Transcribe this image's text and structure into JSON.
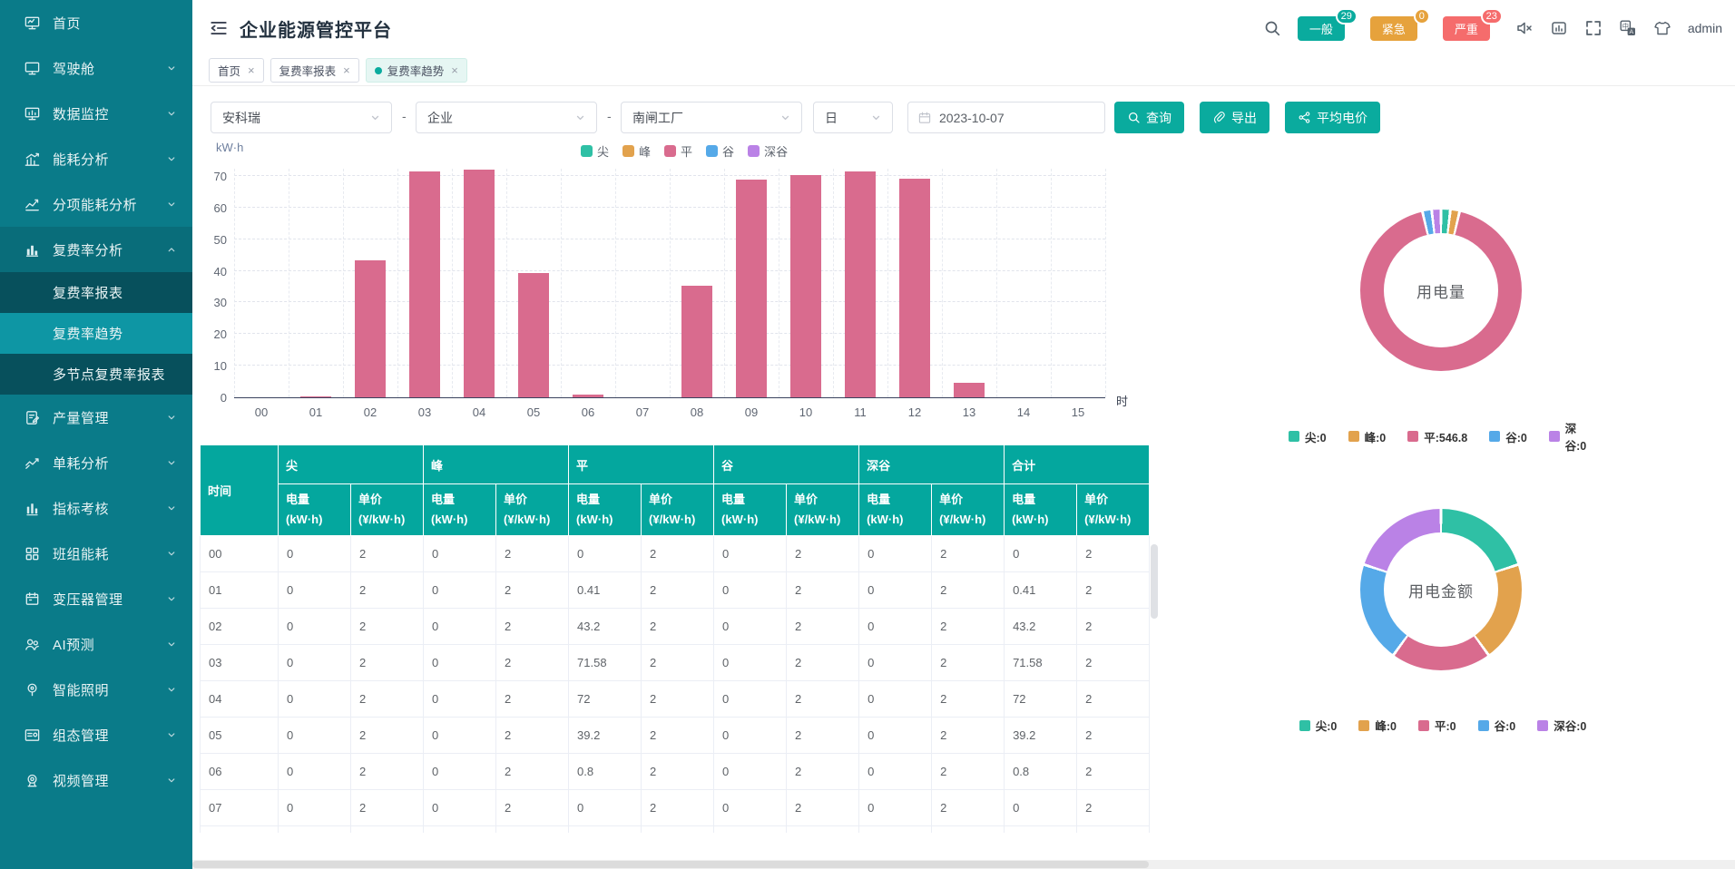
{
  "app": {
    "title": "企业能源管控平台",
    "user": "admin"
  },
  "header": {
    "icons": [
      "collapse-menu-icon",
      "search-icon",
      "volume-mute-icon",
      "monitor-chart-icon",
      "fullscreen-icon",
      "translate-icon",
      "theme-shirt-icon"
    ],
    "badges": [
      {
        "label": "一般",
        "count": "29",
        "color": "#0aab9e"
      },
      {
        "label": "紧急",
        "count": "0",
        "color": "#e6a23c"
      },
      {
        "label": "严重",
        "count": "23",
        "color": "#f56c6c"
      }
    ]
  },
  "tabs": [
    {
      "label": "首页",
      "active": false
    },
    {
      "label": "复费率报表",
      "active": false
    },
    {
      "label": "复费率趋势",
      "active": true
    }
  ],
  "sidebar": {
    "items": [
      {
        "label": "首页",
        "icon": "home-monitor-icon",
        "expandable": false
      },
      {
        "label": "驾驶舱",
        "icon": "dashboard-monitor-icon",
        "expandable": true
      },
      {
        "label": "数据监控",
        "icon": "data-monitor-icon",
        "expandable": true
      },
      {
        "label": "能耗分析",
        "icon": "energy-bars-icon",
        "expandable": true
      },
      {
        "label": "分项能耗分析",
        "icon": "line-chart-icon",
        "expandable": true
      },
      {
        "label": "复费率分析",
        "icon": "bar-chart-icon",
        "expandable": true,
        "expanded": true,
        "children": [
          {
            "label": "复费率报表",
            "active": false
          },
          {
            "label": "复费率趋势",
            "active": true
          },
          {
            "label": "多节点复费率报表",
            "active": false
          }
        ]
      },
      {
        "label": "产量管理",
        "icon": "notebook-icon",
        "expandable": true
      },
      {
        "label": "单耗分析",
        "icon": "trend-arrows-icon",
        "expandable": true
      },
      {
        "label": "指标考核",
        "icon": "bar-gauge-icon",
        "expandable": true
      },
      {
        "label": "班组能耗",
        "icon": "grid-icon",
        "expandable": true
      },
      {
        "label": "变压器管理",
        "icon": "calendar-icon",
        "expandable": true
      },
      {
        "label": "AI预测",
        "icon": "users-icon",
        "expandable": true
      },
      {
        "label": "智能照明",
        "icon": "bulb-icon",
        "expandable": true
      },
      {
        "label": "组态管理",
        "icon": "layout-icon",
        "expandable": true
      },
      {
        "label": "视频管理",
        "icon": "camera-icon",
        "expandable": true
      }
    ]
  },
  "filters": {
    "selects": [
      {
        "value": "安科瑞"
      },
      {
        "value": "企业"
      },
      {
        "value": "南闸工厂"
      },
      {
        "value": "日"
      }
    ],
    "separator": "-",
    "date": {
      "value": "2023-10-07"
    },
    "buttons": [
      {
        "label": "查询",
        "icon": "search-icon"
      },
      {
        "label": "导出",
        "icon": "paperclip-icon"
      },
      {
        "label": "平均电价",
        "icon": "share-icon"
      }
    ]
  },
  "chart_data": [
    {
      "type": "bar",
      "title": "复费率趋势按小时电量",
      "ylabel": "kW·h",
      "xlabel": "时",
      "ylim": [
        0,
        70
      ],
      "grid": "dashed",
      "legend_position": "top",
      "categories": [
        "00",
        "01",
        "02",
        "03",
        "04",
        "05",
        "06",
        "07",
        "08",
        "09",
        "10",
        "11",
        "12",
        "13",
        "14",
        "15"
      ],
      "series": [
        {
          "name": "尖",
          "color": "#2fc0a5",
          "values": [
            0,
            0,
            0,
            0,
            0,
            0,
            0,
            0,
            0,
            0,
            0,
            0,
            0,
            0,
            0,
            0
          ]
        },
        {
          "name": "峰",
          "color": "#e2a24d",
          "values": [
            0,
            0,
            0,
            0,
            0,
            0,
            0,
            0,
            0,
            0,
            0,
            0,
            0,
            0,
            0,
            0
          ]
        },
        {
          "name": "平",
          "color": "#d96b8e",
          "values": [
            0,
            0.41,
            43.2,
            71.58,
            72,
            39.2,
            0.8,
            0,
            35.3,
            68.8,
            70.3,
            71.4,
            69.2,
            4.5,
            0,
            0
          ]
        },
        {
          "name": "谷",
          "color": "#55a9e8",
          "values": [
            0,
            0,
            0,
            0,
            0,
            0,
            0,
            0,
            0,
            0,
            0,
            0,
            0,
            0,
            0,
            0
          ]
        },
        {
          "name": "深谷",
          "color": "#ba82e6",
          "values": [
            0,
            0,
            0,
            0,
            0,
            0,
            0,
            0,
            0,
            0,
            0,
            0,
            0,
            0,
            0,
            0
          ]
        }
      ]
    },
    {
      "type": "pie",
      "title": "用电量",
      "legend_position": "bottom",
      "slices": [
        {
          "label": "尖",
          "value": 0,
          "color": "#2fc0a5"
        },
        {
          "label": "峰",
          "value": 0,
          "color": "#e2a24d"
        },
        {
          "label": "平",
          "value": 546.8,
          "color": "#d96b8e"
        },
        {
          "label": "谷",
          "value": 0,
          "color": "#55a9e8"
        },
        {
          "label": "深谷",
          "value": 0,
          "color": "#ba82e6"
        }
      ]
    },
    {
      "type": "pie",
      "title": "用电金额",
      "legend_position": "bottom",
      "slices": [
        {
          "label": "尖",
          "value": 0,
          "color": "#2fc0a5"
        },
        {
          "label": "峰",
          "value": 0,
          "color": "#e2a24d"
        },
        {
          "label": "平",
          "value": 0,
          "color": "#d96b8e"
        },
        {
          "label": "谷",
          "value": 0,
          "color": "#55a9e8"
        },
        {
          "label": "深谷",
          "value": 0,
          "color": "#ba82e6"
        }
      ]
    }
  ],
  "table": {
    "time_header": "时间",
    "groups": [
      "尖",
      "峰",
      "平",
      "谷",
      "深谷",
      "合计"
    ],
    "sub_headers": [
      "电量(kW·h)",
      "单价(¥/kW·h)"
    ],
    "rows": [
      [
        "00",
        "0",
        "2",
        "0",
        "2",
        "0",
        "2",
        "0",
        "2",
        "0",
        "2",
        "0",
        "2"
      ],
      [
        "01",
        "0",
        "2",
        "0",
        "2",
        "0.41",
        "2",
        "0",
        "2",
        "0",
        "2",
        "0.41",
        "2"
      ],
      [
        "02",
        "0",
        "2",
        "0",
        "2",
        "43.2",
        "2",
        "0",
        "2",
        "0",
        "2",
        "43.2",
        "2"
      ],
      [
        "03",
        "0",
        "2",
        "0",
        "2",
        "71.58",
        "2",
        "0",
        "2",
        "0",
        "2",
        "71.58",
        "2"
      ],
      [
        "04",
        "0",
        "2",
        "0",
        "2",
        "72",
        "2",
        "0",
        "2",
        "0",
        "2",
        "72",
        "2"
      ],
      [
        "05",
        "0",
        "2",
        "0",
        "2",
        "39.2",
        "2",
        "0",
        "2",
        "0",
        "2",
        "39.2",
        "2"
      ],
      [
        "06",
        "0",
        "2",
        "0",
        "2",
        "0.8",
        "2",
        "0",
        "2",
        "0",
        "2",
        "0.8",
        "2"
      ],
      [
        "07",
        "0",
        "2",
        "0",
        "2",
        "0",
        "2",
        "0",
        "2",
        "0",
        "2",
        "0",
        "2"
      ]
    ]
  }
}
